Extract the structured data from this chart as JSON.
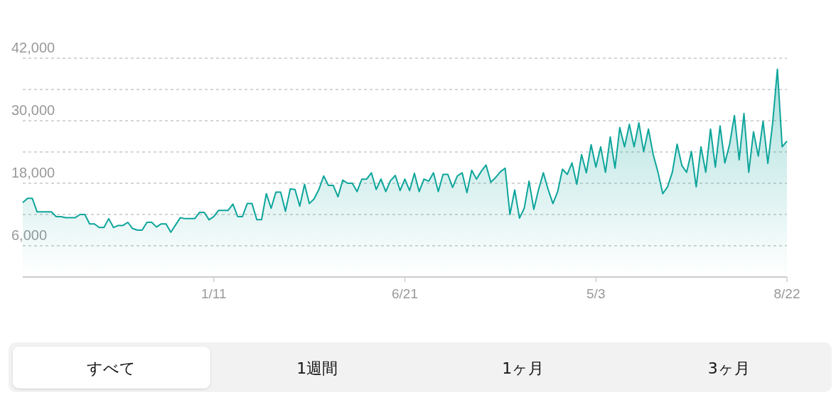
{
  "chart_data": {
    "type": "area",
    "color": "#0ea59b",
    "grid": "y",
    "ylim": [
      0,
      42000
    ],
    "yticks": [
      {
        "value": 6000,
        "label": "6,000"
      },
      {
        "value": 12000,
        "label": null
      },
      {
        "value": 18000,
        "label": "18,000"
      },
      {
        "value": 24000,
        "label": null
      },
      {
        "value": 30000,
        "label": "30,000"
      },
      {
        "value": 36000,
        "label": null
      },
      {
        "value": 42000,
        "label": "42,000"
      }
    ],
    "categories": [
      null,
      null,
      null,
      null,
      null,
      null,
      null,
      null,
      null,
      null,
      null,
      null,
      null,
      null,
      null,
      null,
      null,
      null,
      null,
      null,
      null,
      null,
      null,
      null,
      null,
      null,
      null,
      null,
      null,
      null,
      null,
      null,
      null,
      null,
      null,
      null,
      null,
      null,
      null,
      null,
      "1/11",
      null,
      null,
      null,
      null,
      null,
      null,
      null,
      null,
      null,
      null,
      null,
      null,
      null,
      null,
      null,
      null,
      null,
      null,
      null,
      null,
      null,
      null,
      null,
      null,
      null,
      null,
      null,
      null,
      null,
      null,
      null,
      null,
      null,
      null,
      null,
      null,
      null,
      null,
      null,
      "6/21",
      null,
      null,
      null,
      null,
      null,
      null,
      null,
      null,
      null,
      null,
      null,
      null,
      null,
      null,
      null,
      null,
      null,
      null,
      null,
      null,
      null,
      null,
      null,
      null,
      null,
      null,
      null,
      null,
      null,
      null,
      null,
      null,
      null,
      null,
      null,
      null,
      null,
      null,
      null,
      "5/3",
      null,
      null,
      null,
      null,
      null,
      null,
      null,
      null,
      null,
      null,
      null,
      null,
      null,
      null,
      null,
      null,
      null,
      null,
      null,
      null,
      null,
      null,
      null,
      null,
      null,
      null,
      null,
      null,
      null,
      null,
      null,
      null,
      null,
      null,
      null,
      null,
      null,
      null,
      null,
      "8/22"
    ],
    "values": [
      14300,
      15100,
      15100,
      12500,
      12500,
      12500,
      12500,
      11600,
      11600,
      11400,
      11400,
      11400,
      12000,
      12000,
      10200,
      10200,
      9500,
      9500,
      11200,
      9500,
      9900,
      9900,
      10500,
      9300,
      9000,
      9000,
      10500,
      10500,
      9600,
      10200,
      10200,
      8600,
      10000,
      11400,
      11200,
      11200,
      11200,
      12400,
      12400,
      11000,
      11600,
      12800,
      12800,
      12800,
      14000,
      11600,
      11600,
      14100,
      14100,
      11000,
      11000,
      16000,
      13200,
      16300,
      16300,
      12600,
      16900,
      16800,
      13600,
      17800,
      14100,
      15000,
      16800,
      19400,
      17600,
      17600,
      15400,
      18600,
      18000,
      18000,
      16400,
      18800,
      18800,
      20000,
      16800,
      18800,
      16400,
      18500,
      19500,
      16600,
      18800,
      16600,
      19900,
      16400,
      18800,
      18400,
      20000,
      16400,
      19700,
      19700,
      17200,
      19400,
      20000,
      16200,
      20500,
      18800,
      20300,
      21500,
      18200,
      19100,
      20200,
      20900,
      12000,
      16700,
      11300,
      13200,
      18400,
      13000,
      16800,
      20000,
      16800,
      14100,
      16400,
      20700,
      19700,
      21900,
      17800,
      23500,
      20000,
      25400,
      21100,
      25000,
      20100,
      26900,
      20900,
      28700,
      25000,
      29300,
      25000,
      29600,
      24100,
      28400,
      23500,
      20100,
      16000,
      17300,
      20100,
      25500,
      21400,
      20100,
      24100,
      17300,
      25000,
      20100,
      28400,
      21100,
      29000,
      21900,
      25500,
      31000,
      22500,
      31400,
      20100,
      27900,
      23200,
      29900,
      21800,
      29500,
      39900,
      25000,
      26100
    ],
    "annotations": [
      "すべて",
      "1週間",
      "1ヶ月",
      "3ヶ月"
    ]
  }
}
